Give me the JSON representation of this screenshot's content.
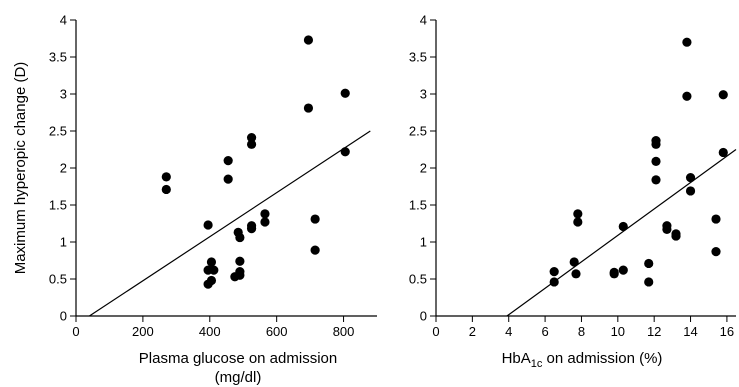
{
  "chart_data": [
    {
      "type": "scatter",
      "xlabel_line1": "Plasma glucose on admission",
      "xlabel_line2": "(mg/dl)",
      "ylabel": "Maximum hyperopic change (D)",
      "xlim": [
        0,
        900
      ],
      "ylim": [
        0,
        4
      ],
      "x_ticks": [
        0,
        200,
        400,
        600,
        800
      ],
      "y_ticks": [
        0,
        0.5,
        1,
        1.5,
        2,
        2.5,
        3,
        3.5,
        4
      ],
      "grid": false,
      "points": [
        [
          270,
          1.88
        ],
        [
          270,
          1.71
        ],
        [
          395,
          1.23
        ],
        [
          395,
          0.62
        ],
        [
          395,
          0.43
        ],
        [
          405,
          0.73
        ],
        [
          405,
          0.48
        ],
        [
          412,
          0.62
        ],
        [
          455,
          2.1
        ],
        [
          455,
          1.85
        ],
        [
          475,
          0.53
        ],
        [
          485,
          1.13
        ],
        [
          490,
          1.06
        ],
        [
          490,
          0.74
        ],
        [
          490,
          0.6
        ],
        [
          490,
          0.55
        ],
        [
          525,
          2.41
        ],
        [
          525,
          2.32
        ],
        [
          525,
          1.22
        ],
        [
          525,
          1.18
        ],
        [
          565,
          1.38
        ],
        [
          565,
          1.27
        ],
        [
          695,
          3.73
        ],
        [
          695,
          2.81
        ],
        [
          715,
          1.31
        ],
        [
          715,
          0.89
        ],
        [
          805,
          3.01
        ],
        [
          805,
          2.22
        ]
      ],
      "fit_line": {
        "x": [
          40,
          880
        ],
        "y": [
          0,
          2.5
        ]
      }
    },
    {
      "type": "scatter",
      "xlabel_main": "HbA",
      "xlabel_sub": "1c",
      "xlabel_rest": " on admission (%)",
      "xlim": [
        0,
        16.5
      ],
      "ylim": [
        0,
        4
      ],
      "x_ticks": [
        0,
        2,
        4,
        6,
        8,
        10,
        12,
        14,
        16
      ],
      "y_ticks": [
        0,
        0.5,
        1,
        1.5,
        2,
        2.5,
        3,
        3.5,
        4
      ],
      "grid": false,
      "points": [
        [
          6.5,
          0.6
        ],
        [
          6.5,
          0.46
        ],
        [
          7.6,
          0.73
        ],
        [
          7.7,
          0.57
        ],
        [
          7.8,
          1.38
        ],
        [
          7.8,
          1.27
        ],
        [
          9.8,
          0.59
        ],
        [
          9.8,
          0.57
        ],
        [
          10.3,
          1.21
        ],
        [
          10.3,
          0.62
        ],
        [
          11.7,
          0.71
        ],
        [
          11.7,
          0.46
        ],
        [
          12.1,
          2.37
        ],
        [
          12.1,
          2.32
        ],
        [
          12.1,
          2.09
        ],
        [
          12.1,
          1.84
        ],
        [
          12.7,
          1.22
        ],
        [
          12.7,
          1.17
        ],
        [
          13.2,
          1.11
        ],
        [
          13.2,
          1.08
        ],
        [
          13.8,
          3.7
        ],
        [
          13.8,
          2.97
        ],
        [
          14.0,
          1.87
        ],
        [
          14.0,
          1.69
        ],
        [
          15.4,
          1.31
        ],
        [
          15.4,
          0.87
        ],
        [
          15.8,
          2.99
        ],
        [
          15.8,
          2.21
        ]
      ],
      "fit_line": {
        "x": [
          3.9,
          16.5
        ],
        "y": [
          0,
          2.25
        ]
      }
    }
  ]
}
